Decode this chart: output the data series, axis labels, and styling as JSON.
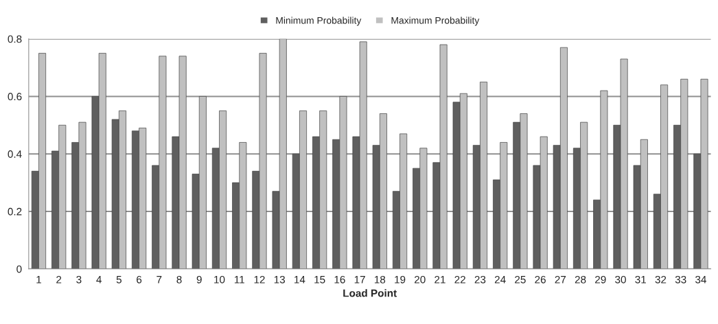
{
  "chart_data": {
    "type": "bar",
    "xlabel": "Load Point",
    "categories": [
      "1",
      "2",
      "3",
      "4",
      "5",
      "6",
      "7",
      "8",
      "9",
      "10",
      "11",
      "12",
      "13",
      "14",
      "15",
      "16",
      "17",
      "18",
      "19",
      "20",
      "21",
      "22",
      "23",
      "24",
      "25",
      "26",
      "27",
      "28",
      "29",
      "30",
      "31",
      "32",
      "33",
      "34"
    ],
    "series": [
      {
        "name": "Minimum Probability",
        "color": "#5f5f5f",
        "values": [
          0.34,
          0.41,
          0.44,
          0.6,
          0.52,
          0.48,
          0.36,
          0.46,
          0.33,
          0.42,
          0.3,
          0.34,
          0.27,
          0.4,
          0.46,
          0.45,
          0.46,
          0.43,
          0.27,
          0.35,
          0.37,
          0.58,
          0.43,
          0.31,
          0.51,
          0.36,
          0.43,
          0.42,
          0.24,
          0.5,
          0.36,
          0.26,
          0.5,
          0.4
        ]
      },
      {
        "name": "Maximum Probability",
        "color": "#c0c0c0",
        "values": [
          0.75,
          0.5,
          0.51,
          0.75,
          0.55,
          0.49,
          0.74,
          0.74,
          0.6,
          0.55,
          0.44,
          0.75,
          0.8,
          0.55,
          0.55,
          0.6,
          0.79,
          0.54,
          0.47,
          0.42,
          0.78,
          0.61,
          0.65,
          0.44,
          0.54,
          0.46,
          0.77,
          0.51,
          0.62,
          0.73,
          0.45,
          0.64,
          0.66,
          0.66
        ]
      }
    ],
    "ylim": [
      0,
      0.8
    ],
    "yticks": [
      0,
      0.2,
      0.4,
      0.6,
      0.8
    ],
    "grid": "y",
    "legend": "top"
  }
}
